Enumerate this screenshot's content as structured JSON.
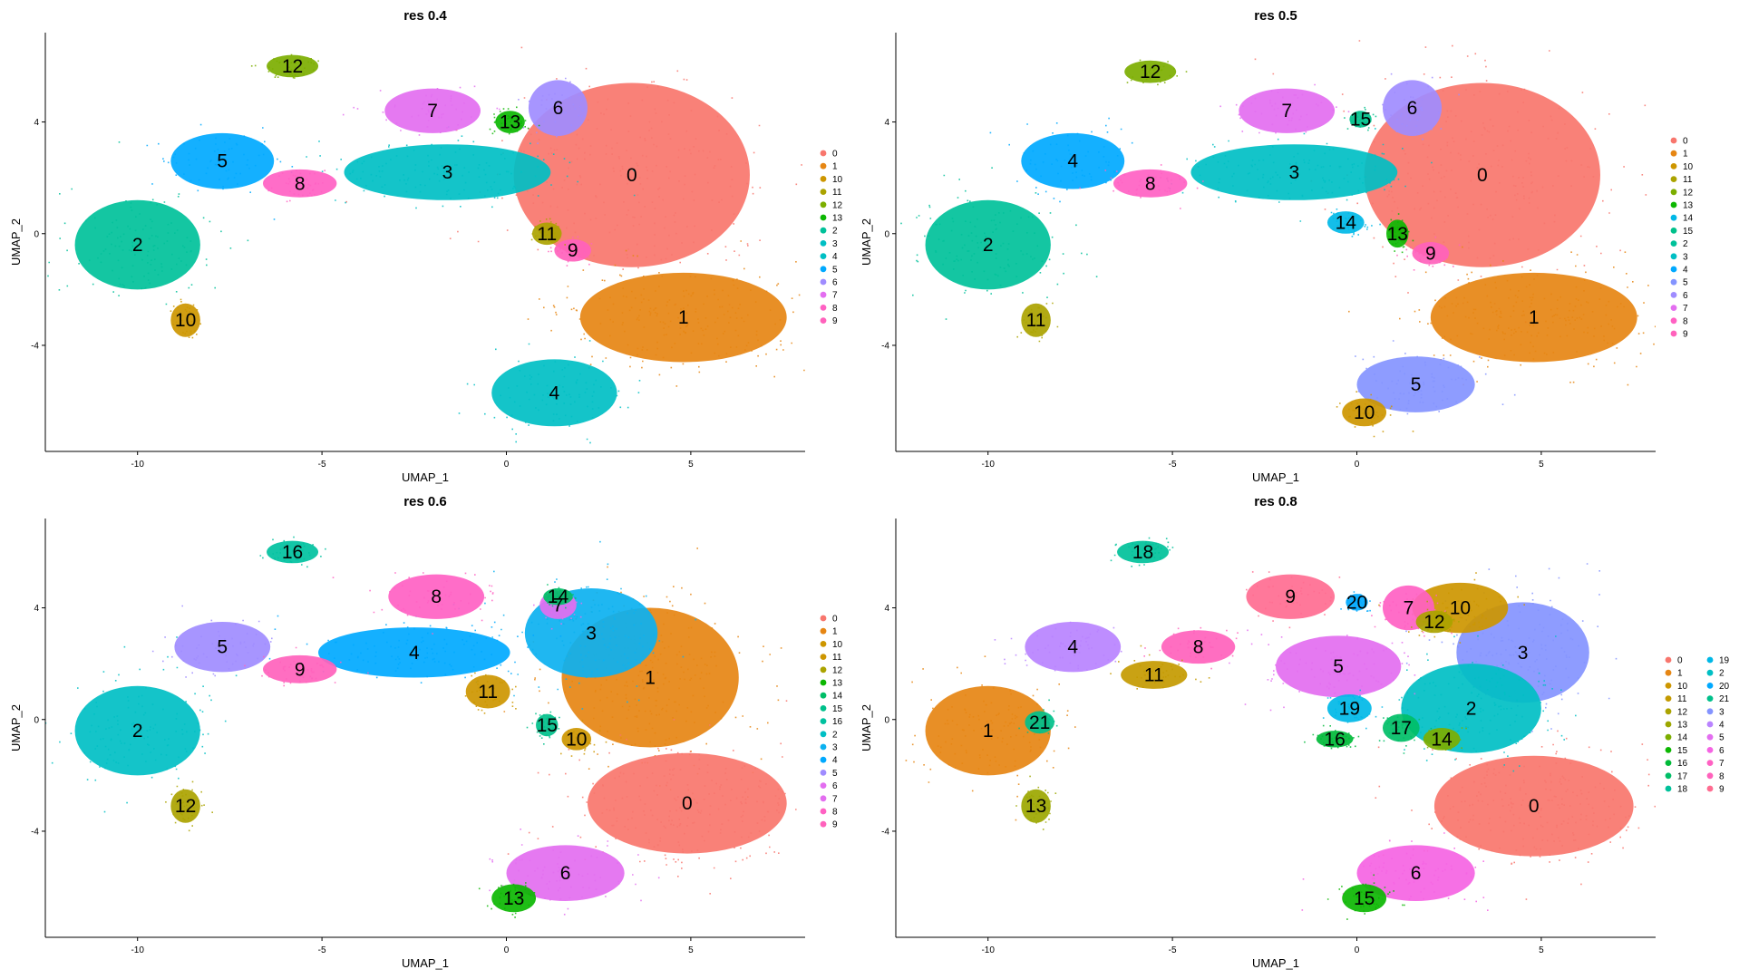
{
  "colors": {
    "0": "#f8766d",
    "1": "#e68613",
    "2": "#00c19a",
    "3": "#00bfc4",
    "4": "#00a9ff",
    "5": "#0cb1f0",
    "6": "#9f8cff",
    "7": "#e36ef0",
    "8": "#ff61c3",
    "9": "#ff62bc",
    "10": "#cd9600",
    "11": "#aba300",
    "12": "#7cae00",
    "13": "#0cb702",
    "14": "#00be67",
    "15": "#00c08b",
    "16": "#00b8e7",
    "17": "#00c19f",
    "18": "#00bfc4",
    "19": "#00b8e7",
    "20": "#00a9ff",
    "21": "#8494ff"
  },
  "chart_data": [
    {
      "type": "scatter",
      "title": "res 0.4",
      "xlabel": "UMAP_1",
      "ylabel": "UMAP_2",
      "xlim": [
        -12.5,
        8.1
      ],
      "ylim": [
        -7.8,
        7.2
      ],
      "xticks": [
        -10,
        -5,
        0,
        5
      ],
      "yticks": [
        -4,
        0,
        4
      ],
      "x_tick_labels": [
        "-10",
        "-5",
        "0",
        "5"
      ],
      "y_tick_labels": [
        "-4",
        "0",
        "4"
      ],
      "legend_position": "right",
      "legend": [
        "0",
        "1",
        "10",
        "11",
        "12",
        "13",
        "2",
        "3",
        "4",
        "5",
        "6",
        "7",
        "8",
        "9"
      ],
      "clusters": [
        {
          "id": "0",
          "x": 3.4,
          "y": 2.1,
          "rx": 3.2,
          "ry": 3.3,
          "color": "#f8766d"
        },
        {
          "id": "1",
          "x": 4.8,
          "y": -3.0,
          "rx": 2.8,
          "ry": 1.6,
          "color": "#e68613"
        },
        {
          "id": "2",
          "x": -10.0,
          "y": -0.4,
          "rx": 1.7,
          "ry": 1.6,
          "color": "#00c19a"
        },
        {
          "id": "3",
          "x": -1.6,
          "y": 2.2,
          "rx": 2.8,
          "ry": 1.0,
          "color": "#00bfc4"
        },
        {
          "id": "4",
          "x": 1.3,
          "y": -5.7,
          "rx": 1.7,
          "ry": 1.2,
          "color": "#00bfc4"
        },
        {
          "id": "5",
          "x": -7.7,
          "y": 2.6,
          "rx": 1.4,
          "ry": 1.0,
          "color": "#00a9ff"
        },
        {
          "id": "6",
          "x": 1.4,
          "y": 4.5,
          "rx": 0.8,
          "ry": 1.0,
          "color": "#9f8cff"
        },
        {
          "id": "7",
          "x": -2.0,
          "y": 4.4,
          "rx": 1.3,
          "ry": 0.8,
          "color": "#e36ef0"
        },
        {
          "id": "8",
          "x": -5.6,
          "y": 1.8,
          "rx": 1.0,
          "ry": 0.5,
          "color": "#ff61c3"
        },
        {
          "id": "9",
          "x": 1.8,
          "y": -0.6,
          "rx": 0.5,
          "ry": 0.4,
          "color": "#ff62bc"
        },
        {
          "id": "10",
          "x": -8.7,
          "y": -3.1,
          "rx": 0.4,
          "ry": 0.6,
          "color": "#cd9600"
        },
        {
          "id": "11",
          "x": 1.1,
          "y": 0.0,
          "rx": 0.4,
          "ry": 0.4,
          "color": "#aba300"
        },
        {
          "id": "12",
          "x": -5.8,
          "y": 6.0,
          "rx": 0.7,
          "ry": 0.4,
          "color": "#7cae00"
        },
        {
          "id": "13",
          "x": 0.1,
          "y": 4.0,
          "rx": 0.4,
          "ry": 0.4,
          "color": "#0cb702"
        }
      ]
    },
    {
      "type": "scatter",
      "title": "res 0.5",
      "xlabel": "UMAP_1",
      "ylabel": "UMAP_2",
      "xlim": [
        -12.5,
        8.1
      ],
      "ylim": [
        -7.8,
        7.2
      ],
      "xticks": [
        -10,
        -5,
        0,
        5
      ],
      "yticks": [
        -4,
        0,
        4
      ],
      "x_tick_labels": [
        "-10",
        "-5",
        "0",
        "5"
      ],
      "y_tick_labels": [
        "-4",
        "0",
        "4"
      ],
      "legend_position": "right",
      "legend": [
        "0",
        "1",
        "10",
        "11",
        "12",
        "13",
        "14",
        "15",
        "2",
        "3",
        "4",
        "5",
        "6",
        "7",
        "8",
        "9"
      ],
      "clusters": [
        {
          "id": "0",
          "x": 3.4,
          "y": 2.1,
          "rx": 3.2,
          "ry": 3.3,
          "color": "#f8766d"
        },
        {
          "id": "1",
          "x": 4.8,
          "y": -3.0,
          "rx": 2.8,
          "ry": 1.6,
          "color": "#e68613"
        },
        {
          "id": "2",
          "x": -10.0,
          "y": -0.4,
          "rx": 1.7,
          "ry": 1.6,
          "color": "#00c19a"
        },
        {
          "id": "3",
          "x": -1.7,
          "y": 2.2,
          "rx": 2.8,
          "ry": 1.0,
          "color": "#00bfc4"
        },
        {
          "id": "4",
          "x": -7.7,
          "y": 2.6,
          "rx": 1.4,
          "ry": 1.0,
          "color": "#00a9ff"
        },
        {
          "id": "5",
          "x": 1.6,
          "y": -5.4,
          "rx": 1.6,
          "ry": 1.0,
          "color": "#8494ff"
        },
        {
          "id": "6",
          "x": 1.5,
          "y": 4.5,
          "rx": 0.8,
          "ry": 1.0,
          "color": "#9f8cff"
        },
        {
          "id": "7",
          "x": -1.9,
          "y": 4.4,
          "rx": 1.3,
          "ry": 0.8,
          "color": "#e36ef0"
        },
        {
          "id": "8",
          "x": -5.6,
          "y": 1.8,
          "rx": 1.0,
          "ry": 0.5,
          "color": "#ff61c3"
        },
        {
          "id": "9",
          "x": 2.0,
          "y": -0.7,
          "rx": 0.5,
          "ry": 0.4,
          "color": "#ff62bc"
        },
        {
          "id": "10",
          "x": 0.2,
          "y": -6.4,
          "rx": 0.6,
          "ry": 0.5,
          "color": "#cd9600"
        },
        {
          "id": "11",
          "x": -8.7,
          "y": -3.1,
          "rx": 0.4,
          "ry": 0.6,
          "color": "#aba300"
        },
        {
          "id": "12",
          "x": -5.6,
          "y": 5.8,
          "rx": 0.7,
          "ry": 0.4,
          "color": "#7cae00"
        },
        {
          "id": "13",
          "x": 1.1,
          "y": 0.0,
          "rx": 0.3,
          "ry": 0.5,
          "color": "#0cb702"
        },
        {
          "id": "14",
          "x": -0.3,
          "y": 0.4,
          "rx": 0.5,
          "ry": 0.4,
          "color": "#00b8e7"
        },
        {
          "id": "15",
          "x": 0.1,
          "y": 4.1,
          "rx": 0.3,
          "ry": 0.3,
          "color": "#00c08b"
        }
      ]
    },
    {
      "type": "scatter",
      "title": "res 0.6",
      "xlabel": "UMAP_1",
      "ylabel": "UMAP_2",
      "xlim": [
        -12.5,
        8.1
      ],
      "ylim": [
        -7.8,
        7.2
      ],
      "xticks": [
        -10,
        -5,
        0,
        5
      ],
      "yticks": [
        -4,
        0,
        4
      ],
      "x_tick_labels": [
        "-10",
        "-5",
        "0",
        "5"
      ],
      "y_tick_labels": [
        "-4",
        "0",
        "4"
      ],
      "legend_position": "right",
      "legend": [
        "0",
        "1",
        "10",
        "11",
        "12",
        "13",
        "14",
        "15",
        "16",
        "2",
        "3",
        "4",
        "5",
        "6",
        "7",
        "8",
        "9"
      ],
      "clusters": [
        {
          "id": "0",
          "x": 4.9,
          "y": -3.0,
          "rx": 2.7,
          "ry": 1.8,
          "color": "#f8766d"
        },
        {
          "id": "1",
          "x": 3.9,
          "y": 1.5,
          "rx": 2.4,
          "ry": 2.5,
          "color": "#e68613"
        },
        {
          "id": "2",
          "x": -10.0,
          "y": -0.4,
          "rx": 1.7,
          "ry": 1.6,
          "color": "#00bfc4"
        },
        {
          "id": "3",
          "x": 2.3,
          "y": 3.1,
          "rx": 1.8,
          "ry": 1.6,
          "color": "#0cb1f0"
        },
        {
          "id": "4",
          "x": -2.5,
          "y": 2.4,
          "rx": 2.6,
          "ry": 0.9,
          "color": "#00a9ff"
        },
        {
          "id": "5",
          "x": -7.7,
          "y": 2.6,
          "rx": 1.3,
          "ry": 0.9,
          "color": "#9f8cff"
        },
        {
          "id": "6",
          "x": 1.6,
          "y": -5.5,
          "rx": 1.6,
          "ry": 1.0,
          "color": "#e36ef0"
        },
        {
          "id": "7",
          "x": 1.4,
          "y": 4.1,
          "rx": 0.5,
          "ry": 0.5,
          "color": "#e36ef0"
        },
        {
          "id": "8",
          "x": -1.9,
          "y": 4.4,
          "rx": 1.3,
          "ry": 0.8,
          "color": "#ff61c3"
        },
        {
          "id": "9",
          "x": -5.6,
          "y": 1.8,
          "rx": 1.0,
          "ry": 0.5,
          "color": "#ff62bc"
        },
        {
          "id": "10",
          "x": 1.9,
          "y": -0.7,
          "rx": 0.4,
          "ry": 0.4,
          "color": "#cd9600"
        },
        {
          "id": "11",
          "x": -0.5,
          "y": 1.0,
          "rx": 0.6,
          "ry": 0.6,
          "color": "#cd9600"
        },
        {
          "id": "12",
          "x": -8.7,
          "y": -3.1,
          "rx": 0.4,
          "ry": 0.6,
          "color": "#aba300"
        },
        {
          "id": "13",
          "x": 0.2,
          "y": -6.4,
          "rx": 0.6,
          "ry": 0.5,
          "color": "#0cb702"
        },
        {
          "id": "14",
          "x": 1.4,
          "y": 4.4,
          "rx": 0.4,
          "ry": 0.3,
          "color": "#00be67"
        },
        {
          "id": "15",
          "x": 1.1,
          "y": -0.2,
          "rx": 0.3,
          "ry": 0.4,
          "color": "#00c08b"
        },
        {
          "id": "16",
          "x": -5.8,
          "y": 6.0,
          "rx": 0.7,
          "ry": 0.4,
          "color": "#00c19f"
        }
      ]
    },
    {
      "type": "scatter",
      "title": "res 0.8",
      "xlabel": "UMAP_1",
      "ylabel": "UMAP_2",
      "xlim": [
        -12.5,
        8.1
      ],
      "ylim": [
        -7.8,
        7.2
      ],
      "xticks": [
        -10,
        -5,
        0,
        5
      ],
      "yticks": [
        -4,
        0,
        4
      ],
      "x_tick_labels": [
        "-10",
        "-5",
        "0",
        "5"
      ],
      "y_tick_labels": [
        "-4",
        "0",
        "4"
      ],
      "legend_position": "right",
      "legend": [
        "0",
        "1",
        "10",
        "11",
        "12",
        "13",
        "14",
        "15",
        "16",
        "17",
        "18",
        "19",
        "2",
        "20",
        "21",
        "3",
        "4",
        "5",
        "6",
        "7",
        "8",
        "9"
      ],
      "clusters": [
        {
          "id": "0",
          "x": 4.8,
          "y": -3.1,
          "rx": 2.7,
          "ry": 1.8,
          "color": "#f8766d"
        },
        {
          "id": "1",
          "x": -10.0,
          "y": -0.4,
          "rx": 1.7,
          "ry": 1.6,
          "color": "#e68613"
        },
        {
          "id": "2",
          "x": 3.1,
          "y": 0.4,
          "rx": 1.9,
          "ry": 1.6,
          "color": "#00bfc4"
        },
        {
          "id": "3",
          "x": 4.5,
          "y": 2.4,
          "rx": 1.8,
          "ry": 1.8,
          "color": "#8494ff"
        },
        {
          "id": "4",
          "x": -7.7,
          "y": 2.6,
          "rx": 1.3,
          "ry": 0.9,
          "color": "#b983ff"
        },
        {
          "id": "5",
          "x": -0.5,
          "y": 1.9,
          "rx": 1.7,
          "ry": 1.1,
          "color": "#e36ef0"
        },
        {
          "id": "6",
          "x": 1.6,
          "y": -5.5,
          "rx": 1.6,
          "ry": 1.0,
          "color": "#f564e3"
        },
        {
          "id": "7",
          "x": 1.4,
          "y": 4.0,
          "rx": 0.7,
          "ry": 0.8,
          "color": "#ff61c3"
        },
        {
          "id": "8",
          "x": -4.3,
          "y": 2.6,
          "rx": 1.0,
          "ry": 0.6,
          "color": "#ff62bc"
        },
        {
          "id": "9",
          "x": -1.8,
          "y": 4.4,
          "rx": 1.2,
          "ry": 0.8,
          "color": "#ff6c91"
        },
        {
          "id": "10",
          "x": 2.8,
          "y": 4.0,
          "rx": 1.3,
          "ry": 0.9,
          "color": "#cd9600"
        },
        {
          "id": "11",
          "x": -5.5,
          "y": 1.6,
          "rx": 0.9,
          "ry": 0.5,
          "color": "#c49a00"
        },
        {
          "id": "12",
          "x": 2.1,
          "y": 3.5,
          "rx": 0.5,
          "ry": 0.4,
          "color": "#aba300"
        },
        {
          "id": "13",
          "x": -8.7,
          "y": -3.1,
          "rx": 0.4,
          "ry": 0.6,
          "color": "#9ca700"
        },
        {
          "id": "14",
          "x": 2.3,
          "y": -0.7,
          "rx": 0.5,
          "ry": 0.4,
          "color": "#7cae00"
        },
        {
          "id": "15",
          "x": 0.2,
          "y": -6.4,
          "rx": 0.6,
          "ry": 0.5,
          "color": "#0cb702"
        },
        {
          "id": "16",
          "x": -0.6,
          "y": -0.7,
          "rx": 0.5,
          "ry": 0.3,
          "color": "#00ba38"
        },
        {
          "id": "17",
          "x": 1.2,
          "y": -0.3,
          "rx": 0.5,
          "ry": 0.5,
          "color": "#00be67"
        },
        {
          "id": "18",
          "x": -5.8,
          "y": 6.0,
          "rx": 0.7,
          "ry": 0.4,
          "color": "#00c19a"
        },
        {
          "id": "19",
          "x": -0.2,
          "y": 0.4,
          "rx": 0.6,
          "ry": 0.5,
          "color": "#00b8e7"
        },
        {
          "id": "20",
          "x": 0.0,
          "y": 4.2,
          "rx": 0.3,
          "ry": 0.3,
          "color": "#00a9ff"
        },
        {
          "id": "21",
          "x": -8.6,
          "y": -0.1,
          "rx": 0.4,
          "ry": 0.4,
          "color": "#00c08b"
        }
      ]
    }
  ]
}
